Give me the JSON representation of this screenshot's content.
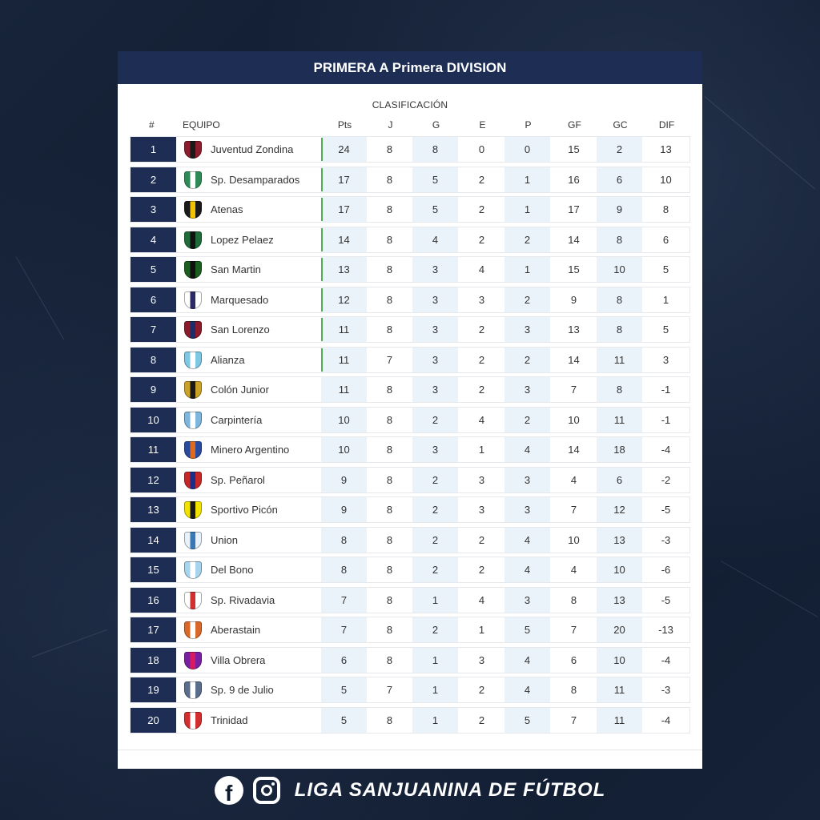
{
  "header": {
    "title": "PRIMERA A Primera DIVISION"
  },
  "table": {
    "subtitle": "CLASIFICACIÓN",
    "columns": {
      "pos": "#",
      "team": "EQUIPO",
      "pts": "Pts",
      "j": "J",
      "g": "G",
      "e": "E",
      "p": "P",
      "gf": "GF",
      "gc": "GC",
      "dif": "DIF"
    },
    "rows": [
      {
        "pos": "1",
        "team": "Juventud Zondina",
        "pts": "24",
        "j": "8",
        "g": "8",
        "e": "0",
        "p": "0",
        "gf": "15",
        "gc": "2",
        "dif": "13",
        "crest_color": "#8b1d2c",
        "crest_accent": "#1a1a1a",
        "qualified": true
      },
      {
        "pos": "2",
        "team": "Sp. Desamparados",
        "pts": "17",
        "j": "8",
        "g": "5",
        "e": "2",
        "p": "1",
        "gf": "16",
        "gc": "6",
        "dif": "10",
        "crest_color": "#2e8b57",
        "crest_accent": "#ffffff",
        "qualified": true
      },
      {
        "pos": "3",
        "team": "Atenas",
        "pts": "17",
        "j": "8",
        "g": "5",
        "e": "2",
        "p": "1",
        "gf": "17",
        "gc": "9",
        "dif": "8",
        "crest_color": "#1a1a1a",
        "crest_accent": "#f2c300",
        "qualified": true
      },
      {
        "pos": "4",
        "team": "Lopez Pelaez",
        "pts": "14",
        "j": "8",
        "g": "4",
        "e": "2",
        "p": "2",
        "gf": "14",
        "gc": "8",
        "dif": "6",
        "crest_color": "#1f6b3a",
        "crest_accent": "#111111",
        "qualified": true
      },
      {
        "pos": "5",
        "team": "San Martin",
        "pts": "13",
        "j": "8",
        "g": "3",
        "e": "4",
        "p": "1",
        "gf": "15",
        "gc": "10",
        "dif": "5",
        "crest_color": "#1b5e20",
        "crest_accent": "#111111",
        "qualified": true
      },
      {
        "pos": "6",
        "team": "Marquesado",
        "pts": "12",
        "j": "8",
        "g": "3",
        "e": "3",
        "p": "2",
        "gf": "9",
        "gc": "8",
        "dif": "1",
        "crest_color": "#ffffff",
        "crest_accent": "#2a2a66",
        "qualified": true
      },
      {
        "pos": "7",
        "team": "San Lorenzo",
        "pts": "11",
        "j": "8",
        "g": "3",
        "e": "2",
        "p": "3",
        "gf": "13",
        "gc": "8",
        "dif": "5",
        "crest_color": "#8b1a2b",
        "crest_accent": "#1d2d6b",
        "qualified": true
      },
      {
        "pos": "8",
        "team": "Alianza",
        "pts": "11",
        "j": "7",
        "g": "3",
        "e": "2",
        "p": "2",
        "gf": "14",
        "gc": "11",
        "dif": "3",
        "crest_color": "#7ec8e3",
        "crest_accent": "#ffffff",
        "qualified": true
      },
      {
        "pos": "9",
        "team": "Colón Junior",
        "pts": "11",
        "j": "8",
        "g": "3",
        "e": "2",
        "p": "3",
        "gf": "7",
        "gc": "8",
        "dif": "-1",
        "crest_color": "#c9a227",
        "crest_accent": "#1a1a1a",
        "qualified": false
      },
      {
        "pos": "10",
        "team": "Carpintería",
        "pts": "10",
        "j": "8",
        "g": "2",
        "e": "4",
        "p": "2",
        "gf": "10",
        "gc": "11",
        "dif": "-1",
        "crest_color": "#7fb6dd",
        "crest_accent": "#ffffff",
        "qualified": false
      },
      {
        "pos": "11",
        "team": "Minero Argentino",
        "pts": "10",
        "j": "8",
        "g": "3",
        "e": "1",
        "p": "4",
        "gf": "14",
        "gc": "18",
        "dif": "-4",
        "crest_color": "#2a4aa0",
        "crest_accent": "#e06a1b",
        "qualified": false
      },
      {
        "pos": "12",
        "team": "Sp. Peñarol",
        "pts": "9",
        "j": "8",
        "g": "2",
        "e": "3",
        "p": "3",
        "gf": "4",
        "gc": "6",
        "dif": "-2",
        "crest_color": "#c62828",
        "crest_accent": "#1a2f8a",
        "qualified": false
      },
      {
        "pos": "13",
        "team": "Sportivo Picón",
        "pts": "9",
        "j": "8",
        "g": "2",
        "e": "3",
        "p": "3",
        "gf": "7",
        "gc": "12",
        "dif": "-5",
        "crest_color": "#f2e200",
        "crest_accent": "#1a1a1a",
        "qualified": false
      },
      {
        "pos": "14",
        "team": "Union",
        "pts": "8",
        "j": "8",
        "g": "2",
        "e": "2",
        "p": "4",
        "gf": "10",
        "gc": "13",
        "dif": "-3",
        "crest_color": "#e8f2fa",
        "crest_accent": "#3a78b5",
        "qualified": false
      },
      {
        "pos": "15",
        "team": "Del Bono",
        "pts": "8",
        "j": "8",
        "g": "2",
        "e": "2",
        "p": "4",
        "gf": "4",
        "gc": "10",
        "dif": "-6",
        "crest_color": "#a9d4ee",
        "crest_accent": "#ffffff",
        "qualified": false
      },
      {
        "pos": "16",
        "team": "Sp. Rivadavia",
        "pts": "7",
        "j": "8",
        "g": "1",
        "e": "4",
        "p": "3",
        "gf": "8",
        "gc": "13",
        "dif": "-5",
        "crest_color": "#ffffff",
        "crest_accent": "#d32f2f",
        "qualified": false
      },
      {
        "pos": "17",
        "team": "Aberastain",
        "pts": "7",
        "j": "8",
        "g": "2",
        "e": "1",
        "p": "5",
        "gf": "7",
        "gc": "20",
        "dif": "-13",
        "crest_color": "#d9692b",
        "crest_accent": "#ffffff",
        "qualified": false
      },
      {
        "pos": "18",
        "team": "Villa Obrera",
        "pts": "6",
        "j": "8",
        "g": "1",
        "e": "3",
        "p": "4",
        "gf": "6",
        "gc": "10",
        "dif": "-4",
        "crest_color": "#7b1fa2",
        "crest_accent": "#d81b60",
        "qualified": false
      },
      {
        "pos": "19",
        "team": "Sp. 9 de Julio",
        "pts": "5",
        "j": "7",
        "g": "1",
        "e": "2",
        "p": "4",
        "gf": "8",
        "gc": "11",
        "dif": "-3",
        "crest_color": "#5a6e8c",
        "crest_accent": "#ffffff",
        "qualified": false
      },
      {
        "pos": "20",
        "team": "Trinidad",
        "pts": "5",
        "j": "8",
        "g": "1",
        "e": "2",
        "p": "5",
        "gf": "7",
        "gc": "11",
        "dif": "-4",
        "crest_color": "#d32f2f",
        "crest_accent": "#ffffff",
        "qualified": false
      }
    ]
  },
  "footer": {
    "facebook_icon": "facebook-icon",
    "instagram_icon": "instagram-icon",
    "facebook_glyph": "f",
    "text": "LIGA SANJUANINA DE FÚTBOL"
  }
}
